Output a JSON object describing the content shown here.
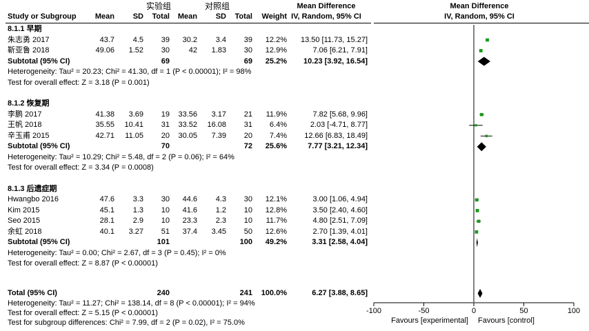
{
  "header": {
    "group_exp": "实验组",
    "group_ctrl": "对照组",
    "study_col": "Study or Subgroup",
    "mean": "Mean",
    "sd": "SD",
    "total": "Total",
    "weight": "Weight",
    "md_title": "Mean Difference",
    "md_method": "IV, Random, 95% CI",
    "plot_title": "Mean Difference",
    "plot_method": "IV, Random, 95% CI"
  },
  "chart_data": {
    "type": "forest",
    "xlim": [
      -100,
      100
    ],
    "x_ticks": [
      "-100",
      "-50",
      "0",
      "50",
      "100"
    ],
    "x_tick_values": [
      -100,
      -50,
      0,
      50,
      100
    ],
    "favours_left": "Favours [experimental]",
    "favours_right": "Favours [control]",
    "subgroups": [
      {
        "title": "8.1.1 早期",
        "studies": [
          {
            "name": "朱志勇 2017",
            "e_mean": "43.7",
            "e_sd": "4.5",
            "e_total": "39",
            "c_mean": "30.2",
            "c_sd": "3.4",
            "c_total": "39",
            "weight": "12.2%",
            "ci_text": "13.50 [11.73, 15.27]",
            "md": 13.5,
            "lo": 11.73,
            "hi": 15.27
          },
          {
            "name": "靳亚鲁 2018",
            "e_mean": "49.06",
            "e_sd": "1.52",
            "e_total": "30",
            "c_mean": "42",
            "c_sd": "1.83",
            "c_total": "30",
            "weight": "12.9%",
            "ci_text": "7.06 [6.21, 7.91]",
            "md": 7.06,
            "lo": 6.21,
            "hi": 7.91
          }
        ],
        "subtotal": {
          "label": "Subtotal (95% CI)",
          "e_total": "69",
          "c_total": "69",
          "weight": "25.2%",
          "ci_text": "10.23 [3.92, 16.54]",
          "md": 10.23,
          "lo": 3.92,
          "hi": 16.54
        },
        "heterogeneity": "Heterogeneity: Tau² = 20.23; Chi² = 41.30, df = 1 (P < 0.00001); I² = 98%",
        "overall": "Test for overall effect: Z = 3.18 (P = 0.001)"
      },
      {
        "title": "8.1.2 恢复期",
        "studies": [
          {
            "name": "李鹏 2017",
            "e_mean": "41.38",
            "e_sd": "3.69",
            "e_total": "19",
            "c_mean": "33.56",
            "c_sd": "3.17",
            "c_total": "21",
            "weight": "11.9%",
            "ci_text": "7.82 [5.68, 9.96]",
            "md": 7.82,
            "lo": 5.68,
            "hi": 9.96
          },
          {
            "name": "王帆 2018",
            "e_mean": "35.55",
            "e_sd": "10.41",
            "e_total": "31",
            "c_mean": "33.52",
            "c_sd": "16.08",
            "c_total": "31",
            "weight": "6.4%",
            "ci_text": "2.03 [-4.71, 8.77]",
            "md": 2.03,
            "lo": -4.71,
            "hi": 8.77
          },
          {
            "name": "辛玉甫 2015",
            "e_mean": "42.71",
            "e_sd": "11.05",
            "e_total": "20",
            "c_mean": "30.05",
            "c_sd": "7.39",
            "c_total": "20",
            "weight": "7.4%",
            "ci_text": "12.66 [6.83, 18.49]",
            "md": 12.66,
            "lo": 6.83,
            "hi": 18.49
          }
        ],
        "subtotal": {
          "label": "Subtotal (95% CI)",
          "e_total": "70",
          "c_total": "72",
          "weight": "25.6%",
          "ci_text": "7.77 [3.21, 12.34]",
          "md": 7.77,
          "lo": 3.21,
          "hi": 12.34
        },
        "heterogeneity": "Heterogeneity: Tau² = 10.29; Chi² = 5.48, df = 2 (P = 0.06); I² = 64%",
        "overall": "Test for overall effect: Z = 3.34 (P = 0.0008)"
      },
      {
        "title": "8.1.3 后遗症期",
        "studies": [
          {
            "name": "Hwangbo 2016",
            "e_mean": "47.6",
            "e_sd": "3.3",
            "e_total": "30",
            "c_mean": "44.6",
            "c_sd": "4.3",
            "c_total": "30",
            "weight": "12.1%",
            "ci_text": "3.00 [1.06, 4.94]",
            "md": 3.0,
            "lo": 1.06,
            "hi": 4.94
          },
          {
            "name": "Kim 2015",
            "e_mean": "45.1",
            "e_sd": "1.3",
            "e_total": "10",
            "c_mean": "41.6",
            "c_sd": "1.2",
            "c_total": "10",
            "weight": "12.8%",
            "ci_text": "3.50 [2.40, 4.60]",
            "md": 3.5,
            "lo": 2.4,
            "hi": 4.6
          },
          {
            "name": "Seo 2015",
            "e_mean": "28.1",
            "e_sd": "2.9",
            "e_total": "10",
            "c_mean": "23.3",
            "c_sd": "2.3",
            "c_total": "10",
            "weight": "11.7%",
            "ci_text": "4.80 [2.51, 7.09]",
            "md": 4.8,
            "lo": 2.51,
            "hi": 7.09
          },
          {
            "name": "余虹 2018",
            "e_mean": "40.1",
            "e_sd": "3.27",
            "e_total": "51",
            "c_mean": "37.4",
            "c_sd": "3.45",
            "c_total": "50",
            "weight": "12.6%",
            "ci_text": "2.70 [1.39, 4.01]",
            "md": 2.7,
            "lo": 1.39,
            "hi": 4.01
          }
        ],
        "subtotal": {
          "label": "Subtotal (95% CI)",
          "e_total": "101",
          "c_total": "100",
          "weight": "49.2%",
          "ci_text": "3.31 [2.58, 4.04]",
          "md": 3.31,
          "lo": 2.58,
          "hi": 4.04
        },
        "heterogeneity": "Heterogeneity: Tau² = 0.00; Chi² = 2.67, df = 3 (P = 0.45); I² = 0%",
        "overall": "Test for overall effect: Z = 8.87 (P < 0.00001)"
      }
    ],
    "total": {
      "label": "Total (95% CI)",
      "e_total": "240",
      "c_total": "241",
      "weight": "100.0%",
      "ci_text": "6.27 [3.88, 8.65]",
      "md": 6.27,
      "lo": 3.88,
      "hi": 8.65
    },
    "total_heterogeneity": "Heterogeneity: Tau² = 11.27; Chi² = 138.14, df = 8 (P < 0.00001); I² = 94%",
    "total_overall": "Test for overall effect: Z = 5.15 (P < 0.00001)",
    "subgroup_diff": "Test for subgroup differences: Chi² = 7.99, df = 2 (P = 0.02), I² = 75.0%",
    "colors": {
      "study_square": "#1a9a1a",
      "diamond": "#000000",
      "line": "#000000"
    }
  }
}
